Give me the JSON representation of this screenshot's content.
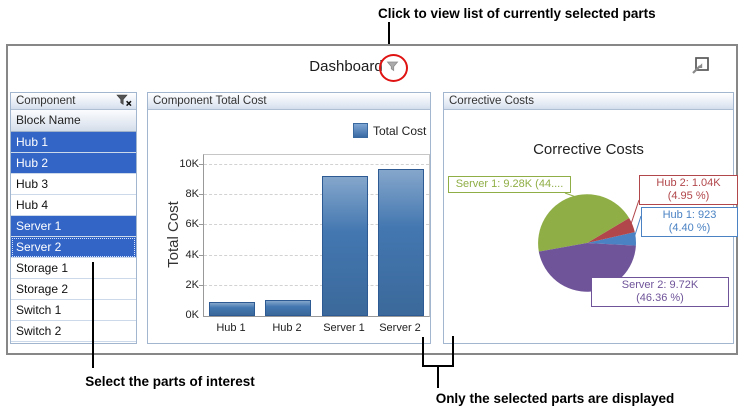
{
  "annotations": {
    "top_note": "Click to view list of currently selected parts",
    "left_note": "Select the parts of interest",
    "right_note": "Only the selected parts are displayed"
  },
  "dashboard": {
    "title": "Dashboard"
  },
  "component_panel": {
    "header": "Component",
    "column_header": "Block Name",
    "rows": [
      {
        "label": "Hub 1",
        "selected": true
      },
      {
        "label": "Hub 2",
        "selected": true
      },
      {
        "label": "Hub 3",
        "selected": false
      },
      {
        "label": "Hub 4",
        "selected": false
      },
      {
        "label": "Server 1",
        "selected": true
      },
      {
        "label": "Server 2",
        "selected": true,
        "focused": true
      },
      {
        "label": "Storage 1",
        "selected": false
      },
      {
        "label": "Storage 2",
        "selected": false
      },
      {
        "label": "Switch 1",
        "selected": false
      },
      {
        "label": "Switch 2",
        "selected": false
      }
    ]
  },
  "bar_panel": {
    "header": "Component Total Cost"
  },
  "pie_panel": {
    "header": "Corrective Costs",
    "chart_title": "Corrective Costs"
  },
  "chart_data": [
    {
      "type": "bar",
      "title": "Component Total Cost",
      "categories": [
        "Hub 1",
        "Hub 2",
        "Server 1",
        "Server 2"
      ],
      "series": [
        {
          "name": "Total Cost",
          "values": [
            923,
            1040,
            9280,
            9720
          ]
        }
      ],
      "xlabel": "",
      "ylabel": "Total Cost",
      "ylim": [
        0,
        10000
      ],
      "ytick_labels": [
        "0K",
        "2K",
        "4K",
        "6K",
        "8K",
        "10K"
      ],
      "grid": "dashed-horizontal",
      "legend_position": "top-right"
    },
    {
      "type": "pie",
      "title": "Corrective Costs",
      "start_angle_deg": -3,
      "direction": "ccw",
      "draw_order": [
        "Hub 1",
        "Hub 2",
        "Server 1",
        "Server 2"
      ],
      "slices": [
        {
          "name": "Server 1",
          "value": 9280,
          "color": "#8fae45",
          "label_line1": "Server 1: 9.28K (44...."
        },
        {
          "name": "Hub 2",
          "value": 1040,
          "percent": 4.95,
          "color": "#b2474b",
          "label_line1": "Hub 2: 1.04K",
          "label_line2": "(4.95 %)"
        },
        {
          "name": "Hub 1",
          "value": 923,
          "percent": 4.4,
          "color": "#4a82c3",
          "label_line1": "Hub 1: 923",
          "label_line2": "(4.40 %)"
        },
        {
          "name": "Server 2",
          "value": 9720,
          "percent": 46.36,
          "color": "#6f5499",
          "label_line1": "Server 2: 9.72K",
          "label_line2": "(46.36 %)"
        }
      ]
    }
  ],
  "colors": {
    "selection": "#3365c7",
    "bar": "#4377b0",
    "annotation_circle": "#e01313"
  }
}
